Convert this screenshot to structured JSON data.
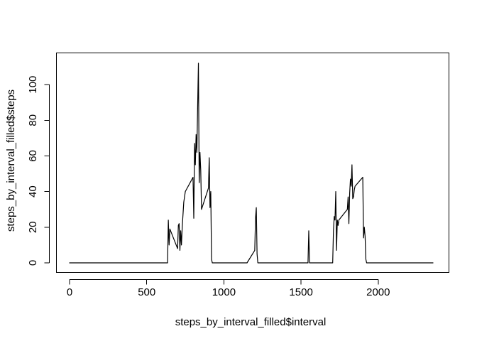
{
  "chart_data": {
    "type": "line",
    "title": "",
    "xlabel": "steps_by_interval_filled$interval",
    "ylabel": "steps_by_interval_filled$steps",
    "xlim": [
      0,
      2355
    ],
    "ylim": [
      0,
      112
    ],
    "x_ticks": [
      0,
      500,
      1000,
      1500,
      2000
    ],
    "y_ticks": [
      0,
      20,
      40,
      60,
      80,
      100
    ],
    "grid": false,
    "legend": "none",
    "line_color": "#000000",
    "series": [
      {
        "x": [
          0,
          635,
          640,
          645,
          650,
          700,
          705,
          710,
          715,
          720,
          725,
          730,
          740,
          750,
          800,
          805,
          810,
          815,
          820,
          825,
          830,
          835,
          840,
          845,
          850,
          855,
          900,
          905,
          910,
          915,
          920,
          925,
          930,
          1150,
          1200,
          1205,
          1210,
          1215,
          1220,
          1545,
          1550,
          1555,
          1705,
          1710,
          1715,
          1720,
          1725,
          1730,
          1735,
          1740,
          1745,
          1800,
          1805,
          1810,
          1815,
          1820,
          1825,
          1830,
          1835,
          1840,
          1845,
          1850,
          1900,
          1905,
          1910,
          1915,
          1920,
          1925,
          2355
        ],
        "y": [
          0,
          0,
          24,
          10,
          19,
          8,
          21,
          22,
          7,
          18,
          10,
          20,
          34,
          40,
          48,
          25,
          67,
          55,
          72,
          62,
          88,
          112,
          45,
          62,
          52,
          30,
          42,
          59,
          31,
          40,
          2,
          0,
          0,
          0,
          7,
          25,
          31,
          5,
          0,
          0,
          18,
          0,
          0,
          18,
          26,
          24,
          40,
          7,
          24,
          21,
          24,
          30,
          37,
          22,
          39,
          47,
          43,
          55,
          36,
          37,
          41,
          43,
          48,
          14,
          20,
          15,
          2,
          0,
          0
        ]
      }
    ]
  }
}
